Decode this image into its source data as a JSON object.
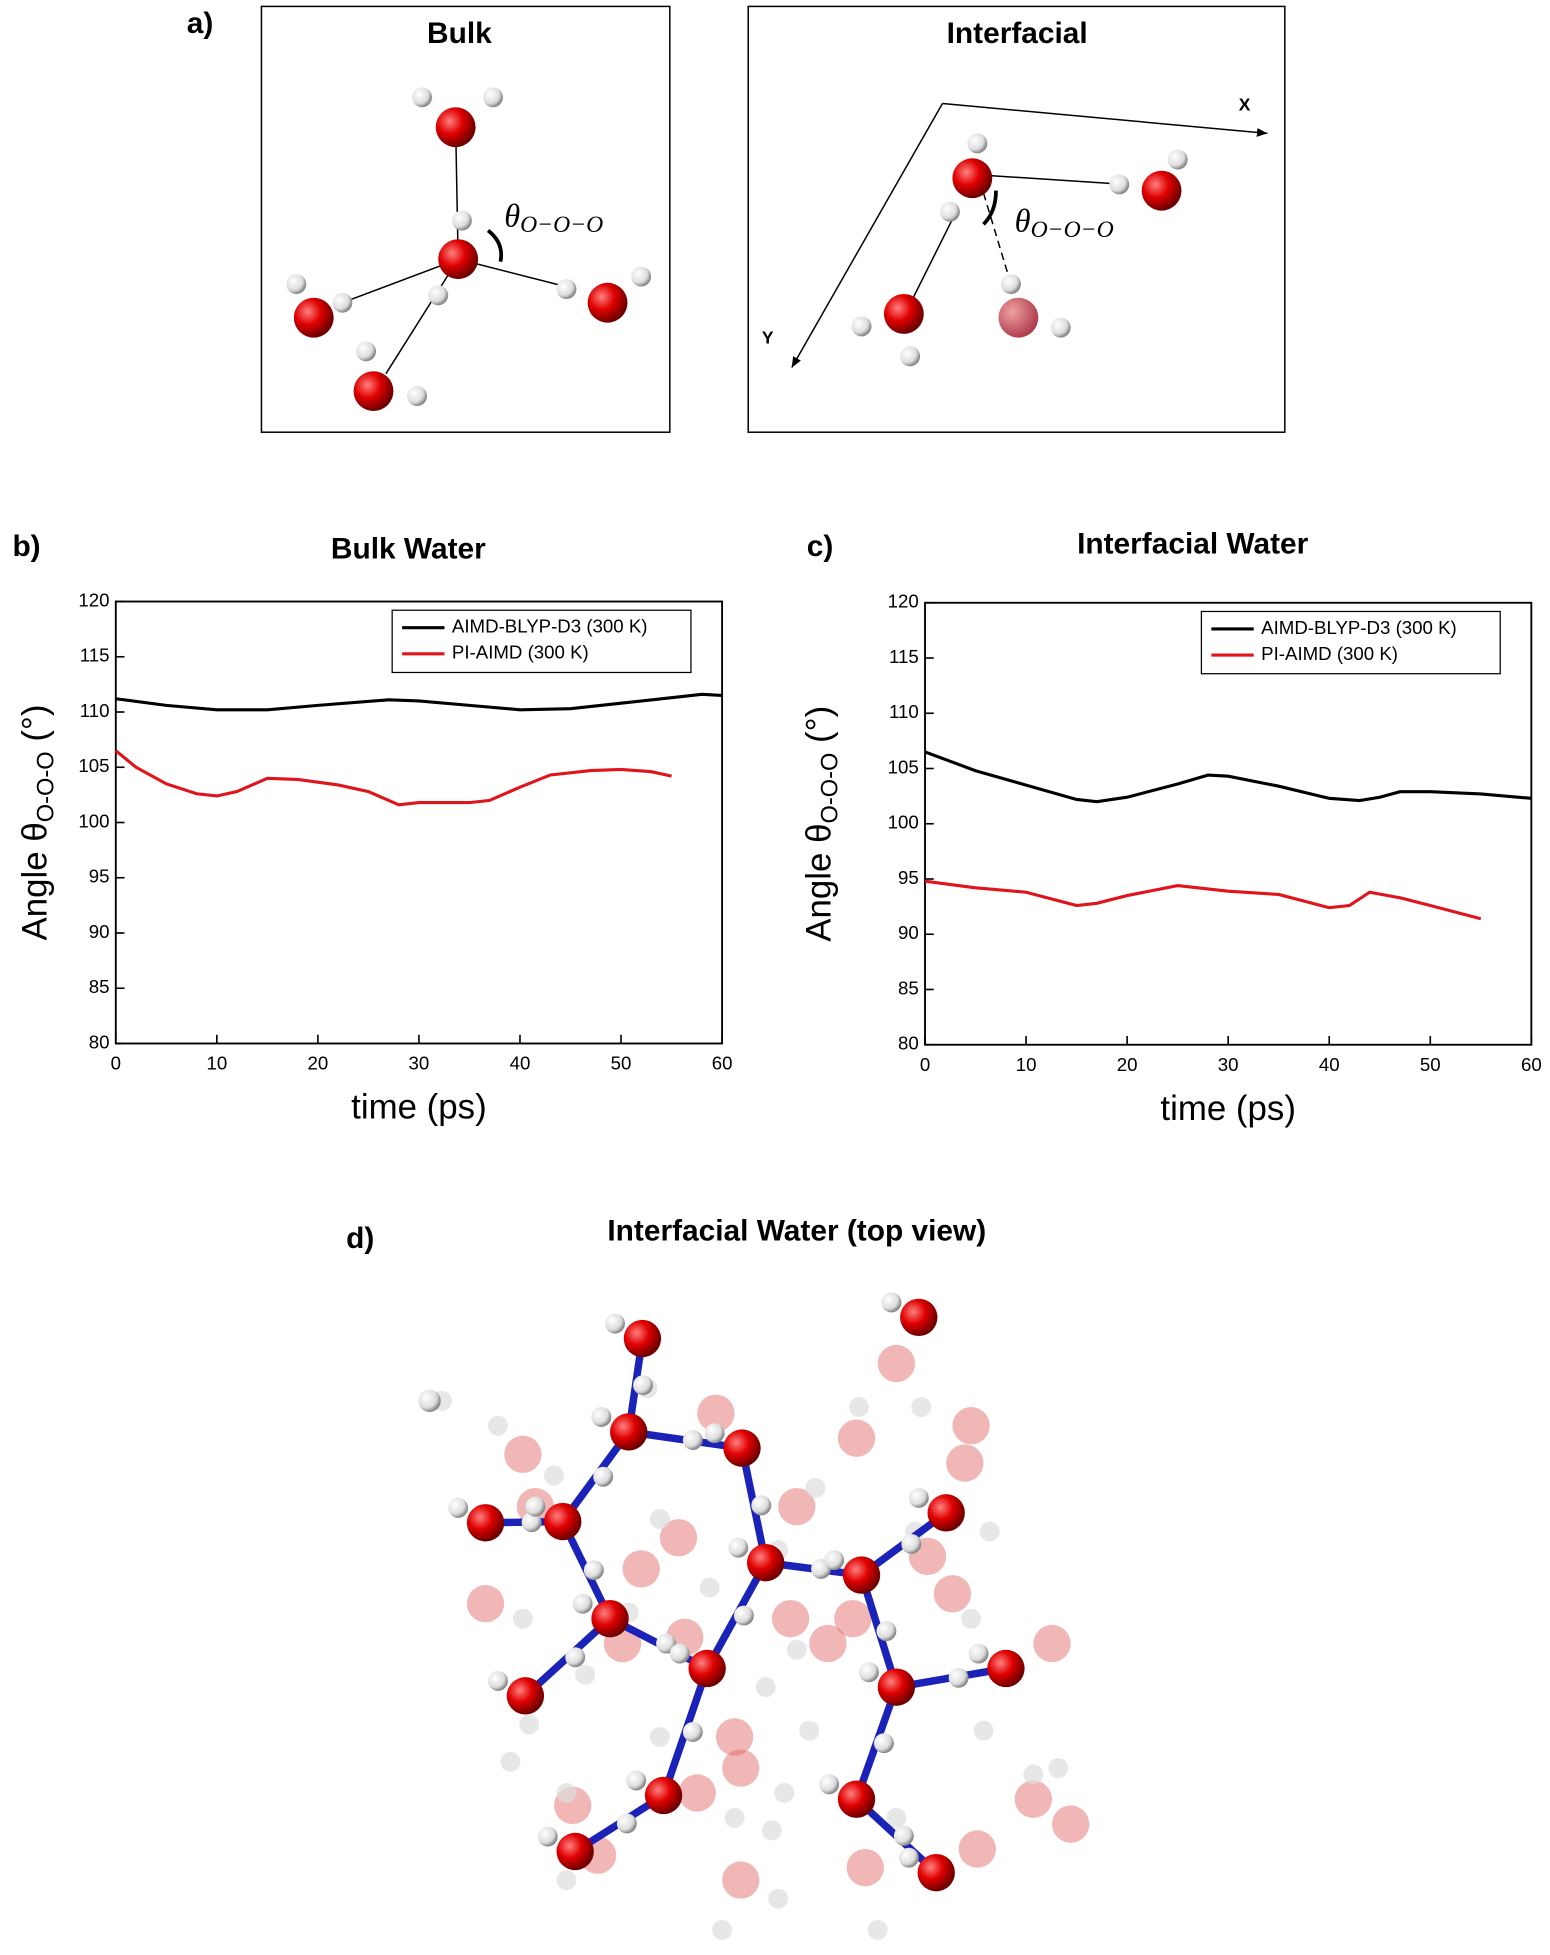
{
  "figure": {
    "panel_a": "a)",
    "bulk_label": "Bulk",
    "interfacial_label": "Interfacial",
    "axis_x": "X",
    "axis_y": "Y",
    "angle_symbol": "θ",
    "angle_sub": "O−O−O",
    "panel_d": "d)",
    "panel_d_title": "Interfacial Water (top view)"
  },
  "chart_data": [
    {
      "type": "line",
      "panel": "b)",
      "title": "Bulk Water",
      "xlabel": "time (ps)",
      "ylabel": {
        "main": "Angle θ",
        "sub": "O-O-O",
        "unit": " (°)"
      },
      "xlim": [
        0,
        60
      ],
      "xticks": [
        0,
        10,
        20,
        30,
        40,
        50,
        60
      ],
      "ylim": [
        80,
        120
      ],
      "yticks": [
        80,
        85,
        90,
        95,
        100,
        105,
        110,
        115,
        120
      ],
      "legend": "upper right",
      "series": [
        {
          "name": "AIMD-BLYP-D3 (300 K)",
          "color": "#000000",
          "x": [
            0,
            5,
            10,
            15,
            20,
            27,
            30,
            35,
            40,
            45,
            50,
            55,
            58,
            60
          ],
          "values": [
            111.2,
            110.6,
            110.2,
            110.2,
            110.6,
            111.1,
            111,
            110.6,
            110.2,
            110.3,
            110.8,
            111.3,
            111.6,
            111.5
          ]
        },
        {
          "name": "PI-AIMD (300 K)",
          "color": "#e0141b",
          "x": [
            0,
            2,
            5,
            8,
            10,
            12,
            15,
            18,
            22,
            25,
            28,
            30,
            35,
            37,
            40,
            43,
            47,
            50,
            53,
            55
          ],
          "values": [
            106.5,
            105,
            103.5,
            102.6,
            102.4,
            102.8,
            104,
            103.9,
            103.4,
            102.8,
            101.6,
            101.8,
            101.8,
            102,
            103.2,
            104.3,
            104.7,
            104.8,
            104.6,
            104.2
          ]
        }
      ]
    },
    {
      "type": "line",
      "panel": "c)",
      "title": "Interfacial Water",
      "xlabel": "time (ps)",
      "ylabel": {
        "main": "Angle θ",
        "sub": "O-O-O",
        "unit": " (°)"
      },
      "xlim": [
        0,
        60
      ],
      "xticks": [
        0,
        10,
        20,
        30,
        40,
        50,
        60
      ],
      "ylim": [
        80,
        120
      ],
      "yticks": [
        80,
        85,
        90,
        95,
        100,
        105,
        110,
        115,
        120
      ],
      "legend": "upper right",
      "series": [
        {
          "name": "AIMD-BLYP-D3 (300 K)",
          "color": "#000000",
          "x": [
            0,
            5,
            10,
            15,
            17,
            20,
            25,
            28,
            30,
            35,
            40,
            43,
            45,
            47,
            50,
            55,
            60
          ],
          "values": [
            106.5,
            104.8,
            103.5,
            102.2,
            102,
            102.4,
            103.6,
            104.4,
            104.3,
            103.4,
            102.3,
            102.1,
            102.4,
            102.9,
            102.9,
            102.7,
            102.3
          ]
        },
        {
          "name": "PI-AIMD (300 K)",
          "color": "#e0141b",
          "x": [
            0,
            5,
            10,
            15,
            17,
            20,
            25,
            30,
            35,
            40,
            42,
            44,
            47,
            50,
            55
          ],
          "values": [
            94.8,
            94.2,
            93.8,
            92.6,
            92.8,
            93.5,
            94.4,
            93.9,
            93.6,
            92.4,
            92.6,
            93.8,
            93.3,
            92.6,
            91.4
          ]
        }
      ]
    }
  ]
}
